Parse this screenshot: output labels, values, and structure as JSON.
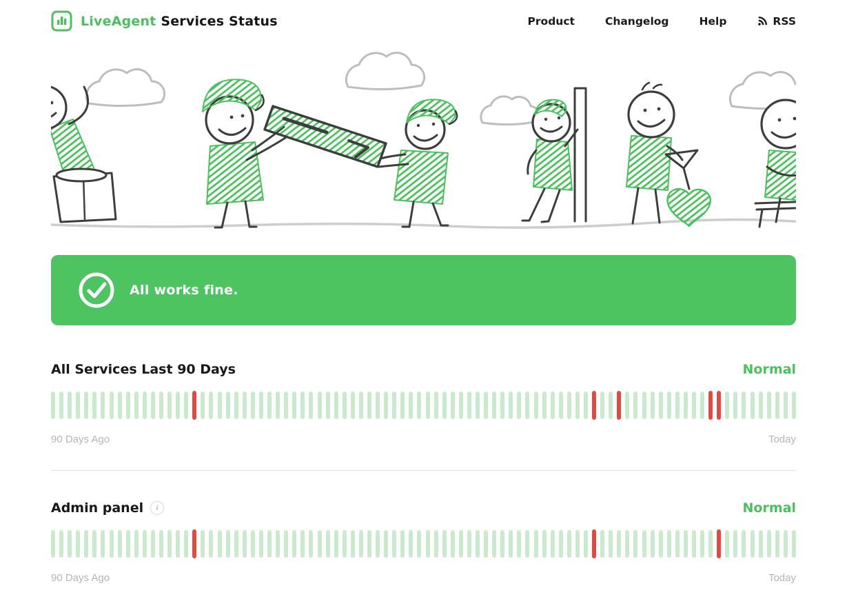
{
  "colors": {
    "brand_green": "#4cc05e",
    "banner_green": "#4dc362",
    "bar_green": "#cbe9cf",
    "bar_red": "#df4b42",
    "dark_text": "#1f1f1f"
  },
  "header": {
    "brand": "LiveAgent",
    "title": "Services Status",
    "nav": {
      "product": "Product",
      "changelog": "Changelog",
      "help": "Help",
      "rss": "RSS"
    }
  },
  "banner": {
    "message": "All works fine."
  },
  "services": [
    {
      "name": "All Services Last 90 Days",
      "status": "Normal",
      "timeline": {
        "left_label": "90 Days Ago",
        "right_label": "Today",
        "total_bars": 90,
        "down_indices": [
          17,
          65,
          68,
          79,
          80
        ]
      }
    },
    {
      "name": "Admin panel",
      "status": "Normal",
      "info_glyph": "i",
      "timeline": {
        "left_label": "90 Days Ago",
        "right_label": "Today",
        "total_bars": 90,
        "down_indices": [
          17,
          65,
          80
        ]
      }
    }
  ],
  "chart_data": [
    {
      "type": "bar",
      "title": "All Services Last 90 Days uptime",
      "x": "last 90 days, oldest to newest",
      "categories_range": [
        "90 Days Ago",
        "Today"
      ],
      "values": "90 daily status pills; status=down on days 17, 65, 68, 79, 80 (0-based from oldest), otherwise up",
      "legend": {
        "up": "#cbe9cf",
        "down": "#df4b42"
      }
    },
    {
      "type": "bar",
      "title": "Admin panel uptime",
      "x": "last 90 days, oldest to newest",
      "categories_range": [
        "90 Days Ago",
        "Today"
      ],
      "values": "90 daily status pills; status=down on days 17, 65, 80 (0-based from oldest), otherwise up",
      "legend": {
        "up": "#cbe9cf",
        "down": "#df4b42"
      }
    }
  ]
}
